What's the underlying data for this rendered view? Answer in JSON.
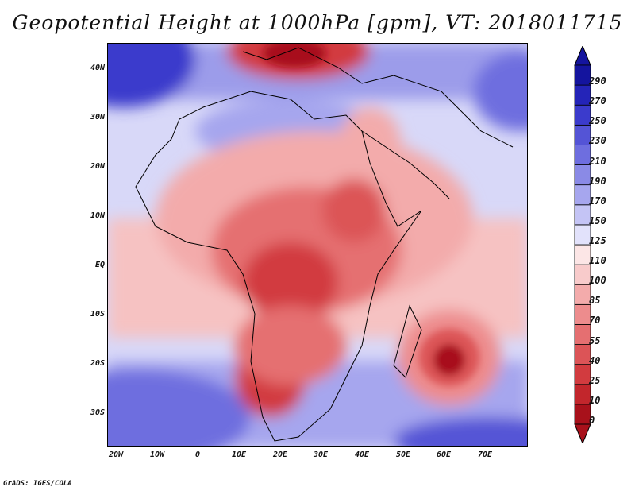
{
  "title": "Geopotential Height at 1000hPa [gpm], VT: 2018011715",
  "footer": "GrADS: IGES/COLA",
  "lat_labels": [
    "40N",
    "30N",
    "20N",
    "10N",
    "EQ",
    "10S",
    "20S",
    "30S"
  ],
  "lon_labels": [
    "20W",
    "10W",
    "0",
    "10E",
    "20E",
    "30E",
    "40E",
    "50E",
    "60E",
    "70E"
  ],
  "colorbar": {
    "levels": [
      "0",
      "10",
      "25",
      "40",
      "55",
      "70",
      "85",
      "100",
      "110",
      "125",
      "150",
      "170",
      "190",
      "210",
      "230",
      "250",
      "270",
      "290"
    ],
    "colors": [
      "#a8111b",
      "#c2262c",
      "#d23b3f",
      "#dc5457",
      "#e56f71",
      "#ed8c8d",
      "#f3abab",
      "#f8cbcb",
      "#fce6e6",
      "#e2e2fb",
      "#c4c4f5",
      "#a6a6ee",
      "#8a8ae6",
      "#6e6edf",
      "#5454d6",
      "#3b3bcc",
      "#2424b8",
      "#14149e"
    ]
  }
}
